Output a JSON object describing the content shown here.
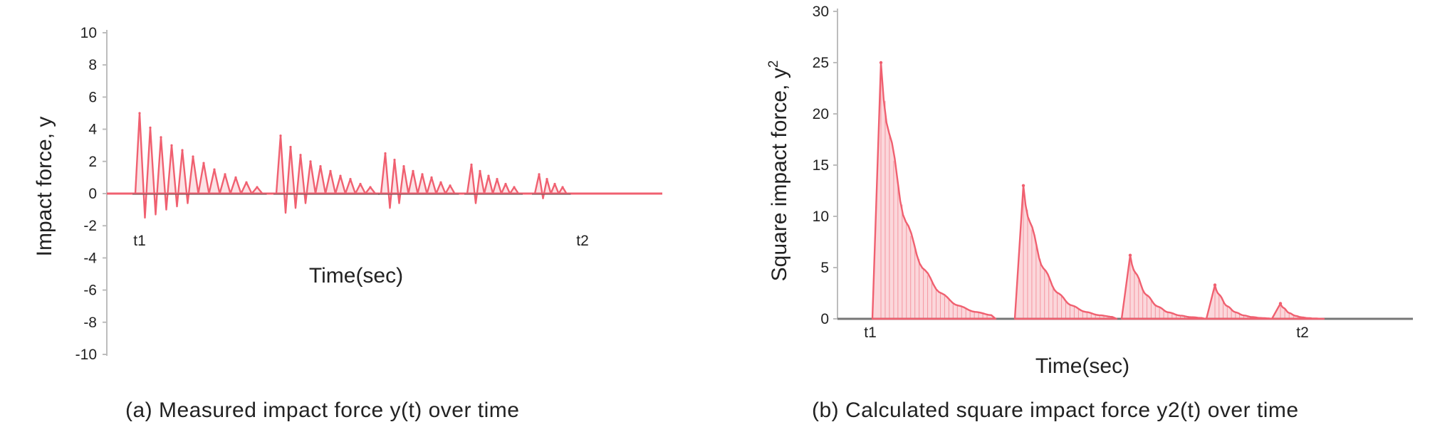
{
  "chart_data": [
    {
      "type": "line",
      "panel": "a",
      "xlabel": "Time(sec)",
      "ylabel": "Impact force, y",
      "ylim": [
        -10,
        10
      ],
      "yticks": [
        10,
        8,
        6,
        4,
        2,
        0,
        -2,
        -4,
        -6,
        -8,
        -10
      ],
      "grid": false,
      "markers": [
        {
          "label": "t1"
        },
        {
          "label": "t2"
        }
      ],
      "series_color": "#f06070",
      "bursts": [
        {
          "peaks": [
            5.0,
            4.1,
            3.5,
            3.0,
            2.7,
            2.3,
            1.9,
            1.5,
            1.2,
            1.0,
            0.7,
            0.4
          ],
          "troughs": [
            -1.5,
            -1.3,
            -1.0,
            -0.8,
            -0.6
          ]
        },
        {
          "peaks": [
            3.6,
            2.9,
            2.4,
            2.0,
            1.7,
            1.4,
            1.1,
            0.9,
            0.6,
            0.4
          ],
          "troughs": [
            -1.2,
            -0.9,
            -0.6
          ]
        },
        {
          "peaks": [
            2.5,
            2.1,
            1.7,
            1.4,
            1.2,
            1.0,
            0.7,
            0.5
          ],
          "troughs": [
            -0.9,
            -0.6
          ]
        },
        {
          "peaks": [
            1.8,
            1.4,
            1.1,
            0.9,
            0.6,
            0.4
          ],
          "troughs": [
            -0.6
          ]
        },
        {
          "peaks": [
            1.2,
            0.9,
            0.6,
            0.4
          ],
          "troughs": [
            -0.3
          ]
        }
      ]
    },
    {
      "type": "area",
      "panel": "b",
      "xlabel": "Time(sec)",
      "ylabel": "Square impact force, y",
      "ylabel_superscript": "2",
      "ylim": [
        0,
        30
      ],
      "yticks": [
        30,
        25,
        20,
        15,
        10,
        5,
        0
      ],
      "grid": false,
      "markers": [
        {
          "label": "t1"
        },
        {
          "label": "t2"
        }
      ],
      "series_color": "#f06070",
      "pulses": [
        {
          "peak": 25
        },
        {
          "peak": 13
        },
        {
          "peak": 6.2
        },
        {
          "peak": 3.3
        },
        {
          "peak": 1.5
        }
      ]
    }
  ],
  "captions": {
    "a": "(a) Measured impact force y(t) over time",
    "b": "(b) Calculated square impact force y2(t) over time"
  }
}
